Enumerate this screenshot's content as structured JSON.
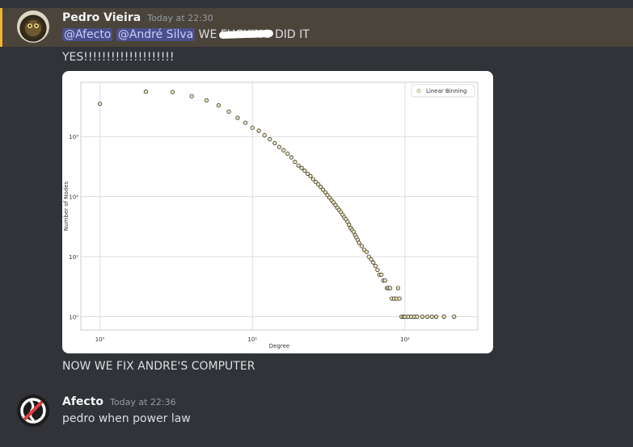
{
  "messages": [
    {
      "author": "Pedro Vieira",
      "timestamp": "Today at 22:30",
      "line1": {
        "mention1": "@Afecto",
        "mention2": "@André Silva",
        "before": "WE",
        "scribbled": "FUCKING",
        "after": "DID IT"
      },
      "line2": "YES!!!!!!!!!!!!!!!!!!!!",
      "line3": "NOW WE FIX ANDRE'S COMPUTER"
    },
    {
      "author": "Afecto",
      "timestamp": "Today at 22:36",
      "line1": "pedro when power law"
    }
  ],
  "colors": {
    "accent": "#f0b232",
    "mention_bg": "#4b4f8e",
    "marker_fill": "#f0e6b0",
    "marker_edge": "#333333"
  },
  "icons": {
    "avatar1": "owl-avatar",
    "avatar2": "no-symbol-avatar"
  },
  "chart_data": {
    "type": "scatter",
    "xscale": "log",
    "yscale": "log",
    "xlabel": "Degree",
    "ylabel": "Number of Nodes",
    "xlim": [
      0.75,
      300
    ],
    "ylim": [
      0.6,
      8000
    ],
    "xticks": [
      1,
      10,
      100
    ],
    "xtick_labels": [
      "10⁰",
      "10¹",
      "10²"
    ],
    "yticks": [
      1,
      10,
      100,
      1000
    ],
    "ytick_labels": [
      "10⁰",
      "10¹",
      "10²",
      "10³"
    ],
    "grid": true,
    "legend": "top-right",
    "series": [
      {
        "name": "Linear Binning",
        "x": [
          1,
          2,
          3,
          4,
          5,
          6,
          7,
          8,
          9,
          10,
          11,
          12,
          13,
          14,
          15,
          16,
          17,
          18,
          19,
          20,
          21,
          22,
          23,
          24,
          25,
          26,
          27,
          28,
          29,
          30,
          31,
          32,
          33,
          34,
          35,
          36,
          37,
          38,
          39,
          40,
          41,
          42,
          43,
          44,
          45,
          46,
          47,
          48,
          49,
          50,
          52,
          54,
          56,
          58,
          60,
          62,
          64,
          66,
          68,
          70,
          72,
          74,
          76,
          78,
          80,
          82,
          85,
          88,
          90,
          92,
          95,
          98,
          100,
          105,
          110,
          115,
          120,
          130,
          140,
          150,
          160,
          180,
          210
        ],
        "y": [
          3500,
          5600,
          5500,
          4700,
          4000,
          3300,
          2600,
          2050,
          1700,
          1400,
          1250,
          1050,
          900,
          780,
          670,
          590,
          520,
          450,
          380,
          330,
          300,
          270,
          240,
          220,
          195,
          175,
          160,
          145,
          130,
          118,
          106,
          96,
          87,
          80,
          72,
          65,
          60,
          55,
          50,
          45,
          42,
          38,
          34,
          30,
          28,
          26,
          23,
          21,
          19,
          17,
          15,
          13,
          12,
          10,
          9,
          8,
          7,
          6,
          5,
          5,
          4,
          4,
          3,
          3,
          3,
          2,
          2,
          2,
          3,
          2,
          1,
          1,
          1,
          1,
          1,
          1,
          1,
          1,
          1,
          1,
          1,
          1,
          1
        ]
      }
    ]
  }
}
